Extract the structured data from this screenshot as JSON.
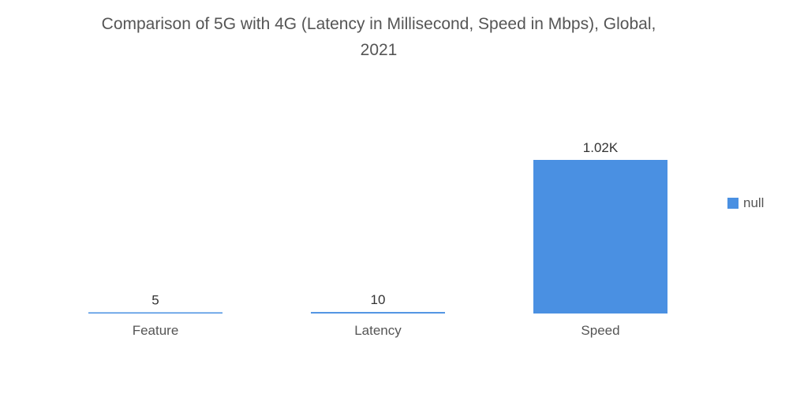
{
  "title_lines": [
    "Comparison of 5G with 4G (Latency in Millisecond, Speed in Mbps), Global,",
    "2021"
  ],
  "colors": {
    "bar": "#4a90e2",
    "text": "#555555"
  },
  "chart_data": {
    "type": "bar",
    "title": "Comparison of 5G with 4G (Latency in Millisecond, Speed in Mbps), Global, 2021",
    "categories": [
      "Feature",
      "Latency",
      "Speed"
    ],
    "values": [
      5,
      10,
      1020
    ],
    "data_labels": [
      "5",
      "10",
      "1.02K"
    ],
    "series": [
      {
        "name": "null",
        "values": [
          5,
          10,
          1020
        ]
      }
    ],
    "xlabel": "",
    "ylabel": "",
    "ylim": [
      0,
      1020
    ],
    "grid": false,
    "legend": "right"
  }
}
